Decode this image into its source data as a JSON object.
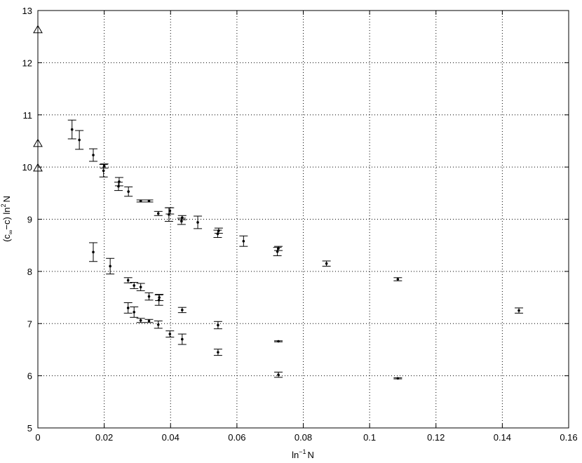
{
  "chart_data": {
    "type": "scatter",
    "xlabel": {
      "base": "ln",
      "sup": "−1",
      "rest": "N"
    },
    "ylabel": {
      "part1": "(c",
      "sub": "∞",
      "part2": "−c) ln",
      "sup": "2",
      "part3": "N"
    },
    "xlim": [
      0,
      0.16
    ],
    "ylim": [
      5,
      13
    ],
    "xticks": [
      "0",
      "0.02",
      "0.04",
      "0.06",
      "0.08",
      "0.1",
      "0.12",
      "0.14",
      "0.16"
    ],
    "yticks": [
      "5",
      "6",
      "7",
      "8",
      "9",
      "10",
      "11",
      "12",
      "13"
    ],
    "grid": true,
    "colors": {
      "marker": "#000000",
      "grid": "#000000"
    },
    "series": [
      {
        "marker": "dot-with-errorbar",
        "points": [
          {
            "x": 0.0103,
            "y": 10.72,
            "err": 0.18
          },
          {
            "x": 0.0125,
            "y": 10.52,
            "err": 0.18
          },
          {
            "x": 0.0167,
            "y": 10.23,
            "err": 0.12
          },
          {
            "x": 0.0198,
            "y": 9.93,
            "err": 0.12
          },
          {
            "x": 0.02,
            "y": 10.02,
            "err": 0.04
          },
          {
            "x": 0.0243,
            "y": 9.63,
            "err": 0.08
          },
          {
            "x": 0.0245,
            "y": 9.72,
            "err": 0.08
          },
          {
            "x": 0.0273,
            "y": 9.53,
            "err": 0.09
          },
          {
            "x": 0.031,
            "y": 9.35,
            "err": 0.02
          },
          {
            "x": 0.0335,
            "y": 9.35,
            "err": 0.02
          },
          {
            "x": 0.0363,
            "y": 9.11,
            "err": 0.04
          },
          {
            "x": 0.0395,
            "y": 9.09,
            "err": 0.13
          },
          {
            "x": 0.0398,
            "y": 9.16,
            "err": 0.06
          },
          {
            "x": 0.0433,
            "y": 8.96,
            "err": 0.06
          },
          {
            "x": 0.0435,
            "y": 9.03,
            "err": 0.04
          },
          {
            "x": 0.0482,
            "y": 8.94,
            "err": 0.12
          },
          {
            "x": 0.0542,
            "y": 8.72,
            "err": 0.07
          },
          {
            "x": 0.0545,
            "y": 8.78,
            "err": 0.05
          },
          {
            "x": 0.062,
            "y": 8.58,
            "err": 0.1
          },
          {
            "x": 0.0722,
            "y": 8.38,
            "err": 0.08
          },
          {
            "x": 0.0725,
            "y": 8.44,
            "err": 0.04
          },
          {
            "x": 0.087,
            "y": 8.15,
            "err": 0.05
          },
          {
            "x": 0.1085,
            "y": 7.85,
            "err": 0.03
          },
          {
            "x": 0.145,
            "y": 7.25,
            "err": 0.05
          }
        ]
      },
      {
        "marker": "dot-with-errorbar",
        "points": [
          {
            "x": 0.0167,
            "y": 8.37,
            "err": 0.18
          },
          {
            "x": 0.0218,
            "y": 8.1,
            "err": 0.15
          },
          {
            "x": 0.0272,
            "y": 7.83,
            "err": 0.05
          },
          {
            "x": 0.029,
            "y": 7.73,
            "err": 0.06
          },
          {
            "x": 0.031,
            "y": 7.7,
            "err": 0.07
          },
          {
            "x": 0.0335,
            "y": 7.52,
            "err": 0.07
          },
          {
            "x": 0.0365,
            "y": 7.45,
            "err": 0.1
          },
          {
            "x": 0.0366,
            "y": 7.5,
            "err": 0.06
          },
          {
            "x": 0.0435,
            "y": 7.26,
            "err": 0.05
          },
          {
            "x": 0.0543,
            "y": 6.97,
            "err": 0.07
          },
          {
            "x": 0.0725,
            "y": 6.66,
            "err": 0.01
          },
          {
            "x": 0.1085,
            "y": 5.95,
            "err": 0.01
          }
        ]
      },
      {
        "marker": "dot-with-errorbar",
        "points": [
          {
            "x": 0.0272,
            "y": 7.3,
            "err": 0.1
          },
          {
            "x": 0.029,
            "y": 7.22,
            "err": 0.1
          },
          {
            "x": 0.031,
            "y": 7.06,
            "err": 0.04
          },
          {
            "x": 0.0335,
            "y": 7.05,
            "err": 0.03
          },
          {
            "x": 0.0363,
            "y": 6.98,
            "err": 0.07
          },
          {
            "x": 0.0398,
            "y": 6.8,
            "err": 0.06
          },
          {
            "x": 0.0435,
            "y": 6.7,
            "err": 0.1
          },
          {
            "x": 0.0543,
            "y": 6.45,
            "err": 0.06
          },
          {
            "x": 0.0725,
            "y": 6.02,
            "err": 0.05
          }
        ]
      },
      {
        "marker": "open-triangle",
        "points": [
          {
            "x": 0,
            "y": 12.63
          },
          {
            "x": 0,
            "y": 10.45
          },
          {
            "x": 0,
            "y": 9.98
          }
        ]
      }
    ]
  }
}
